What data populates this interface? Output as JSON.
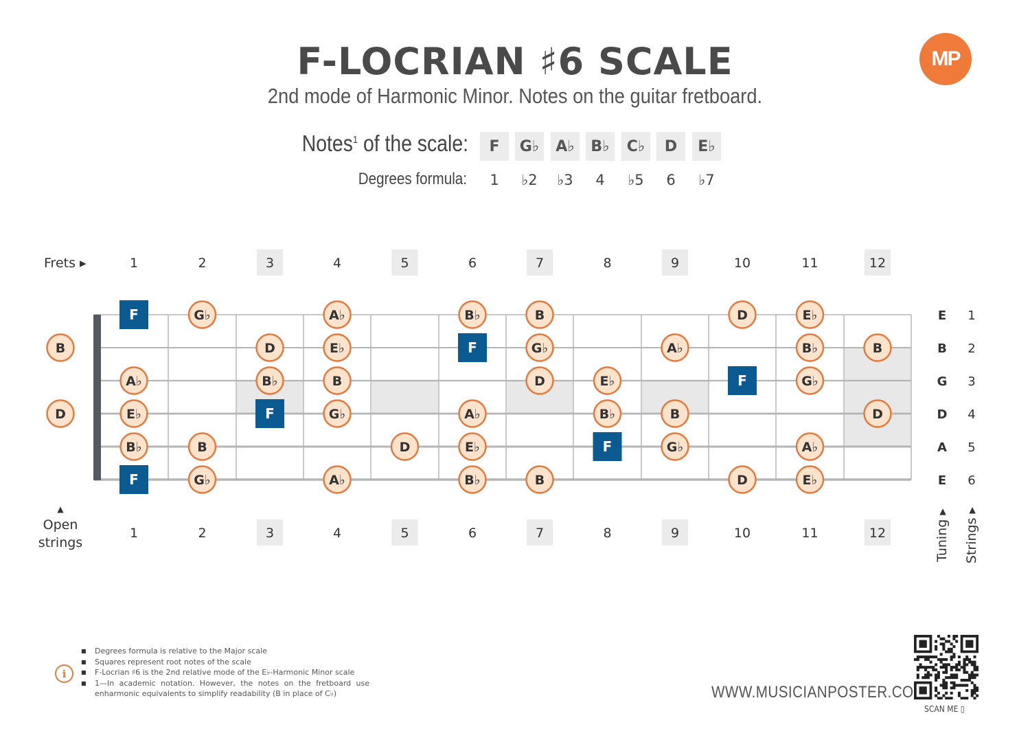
{
  "title": "F-LOCRIAN ♯6 SCALE",
  "subtitle": "2nd mode of Harmonic Minor. Notes on the guitar fretboard.",
  "logo": "MP",
  "scale": {
    "label_main": "Notes",
    "label_sup": "1",
    "label_rest": " of the scale:",
    "degrees_label": "Degrees formula:",
    "notes": [
      "F",
      "G♭",
      "A♭",
      "B♭",
      "C♭",
      "D",
      "E♭"
    ],
    "degrees": [
      "1",
      "♭2",
      "♭3",
      "4",
      "♭5",
      "6",
      "♭7"
    ]
  },
  "frets_label": "Frets ▸",
  "open_label_arrow": "▲",
  "open_label_1": "Open",
  "open_label_2": "strings",
  "tuning_label": "Tuning ▸",
  "strings_label": "Strings ▸",
  "fret_numbers": [
    "1",
    "2",
    "3",
    "4",
    "5",
    "6",
    "7",
    "8",
    "9",
    "10",
    "11",
    "12"
  ],
  "highlighted_frets": [
    3,
    5,
    7,
    9,
    12
  ],
  "tuning": [
    "E",
    "B",
    "G",
    "D",
    "A",
    "E"
  ],
  "string_numbers": [
    "1",
    "2",
    "3",
    "4",
    "5",
    "6"
  ],
  "open_notes": [
    {
      "string": 2,
      "note": "B"
    },
    {
      "string": 4,
      "note": "D"
    }
  ],
  "fretboard_notes": [
    {
      "string": 1,
      "fret": 1,
      "note": "F",
      "root": true
    },
    {
      "string": 1,
      "fret": 2,
      "note": "G♭"
    },
    {
      "string": 1,
      "fret": 4,
      "note": "A♭"
    },
    {
      "string": 1,
      "fret": 6,
      "note": "B♭"
    },
    {
      "string": 1,
      "fret": 7,
      "note": "B"
    },
    {
      "string": 1,
      "fret": 10,
      "note": "D"
    },
    {
      "string": 1,
      "fret": 11,
      "note": "E♭"
    },
    {
      "string": 2,
      "fret": 3,
      "note": "D"
    },
    {
      "string": 2,
      "fret": 4,
      "note": "E♭"
    },
    {
      "string": 2,
      "fret": 6,
      "note": "F",
      "root": true
    },
    {
      "string": 2,
      "fret": 7,
      "note": "G♭"
    },
    {
      "string": 2,
      "fret": 9,
      "note": "A♭"
    },
    {
      "string": 2,
      "fret": 11,
      "note": "B♭"
    },
    {
      "string": 2,
      "fret": 12,
      "note": "B"
    },
    {
      "string": 3,
      "fret": 1,
      "note": "A♭"
    },
    {
      "string": 3,
      "fret": 3,
      "note": "B♭"
    },
    {
      "string": 3,
      "fret": 4,
      "note": "B"
    },
    {
      "string": 3,
      "fret": 7,
      "note": "D"
    },
    {
      "string": 3,
      "fret": 8,
      "note": "E♭"
    },
    {
      "string": 3,
      "fret": 10,
      "note": "F",
      "root": true
    },
    {
      "string": 3,
      "fret": 11,
      "note": "G♭"
    },
    {
      "string": 4,
      "fret": 1,
      "note": "E♭"
    },
    {
      "string": 4,
      "fret": 3,
      "note": "F",
      "root": true
    },
    {
      "string": 4,
      "fret": 4,
      "note": "G♭"
    },
    {
      "string": 4,
      "fret": 6,
      "note": "A♭"
    },
    {
      "string": 4,
      "fret": 8,
      "note": "B♭"
    },
    {
      "string": 4,
      "fret": 9,
      "note": "B"
    },
    {
      "string": 4,
      "fret": 12,
      "note": "D"
    },
    {
      "string": 5,
      "fret": 1,
      "note": "B♭"
    },
    {
      "string": 5,
      "fret": 2,
      "note": "B"
    },
    {
      "string": 5,
      "fret": 5,
      "note": "D"
    },
    {
      "string": 5,
      "fret": 6,
      "note": "E♭"
    },
    {
      "string": 5,
      "fret": 8,
      "note": "F",
      "root": true
    },
    {
      "string": 5,
      "fret": 9,
      "note": "G♭"
    },
    {
      "string": 5,
      "fret": 11,
      "note": "A♭"
    },
    {
      "string": 6,
      "fret": 1,
      "note": "F",
      "root": true
    },
    {
      "string": 6,
      "fret": 2,
      "note": "G♭"
    },
    {
      "string": 6,
      "fret": 4,
      "note": "A♭"
    },
    {
      "string": 6,
      "fret": 6,
      "note": "B♭"
    },
    {
      "string": 6,
      "fret": 7,
      "note": "B"
    },
    {
      "string": 6,
      "fret": 10,
      "note": "D"
    },
    {
      "string": 6,
      "fret": 11,
      "note": "E♭"
    }
  ],
  "footnotes": [
    "Degrees formula is relative to the Major scale",
    "Squares represent root notes of the scale",
    "F-Locrian ♯6 is the 2nd relative mode of the E♭-Harmonic Minor scale",
    "1—In academic notation. However, the notes on the fretboard use enharmonic equivalents to simplify readability (B in place of C♭)"
  ],
  "info_icon": "i",
  "website": "WWW.MUSICIANPOSTER.COM",
  "scan_me": "SCAN ME ▯",
  "colors": {
    "accent": "#e47a3e",
    "note_fill": "#fde3cc",
    "root_fill": "#0b5a91",
    "inlay": "#e8e8e8",
    "nut": "#555a60"
  }
}
